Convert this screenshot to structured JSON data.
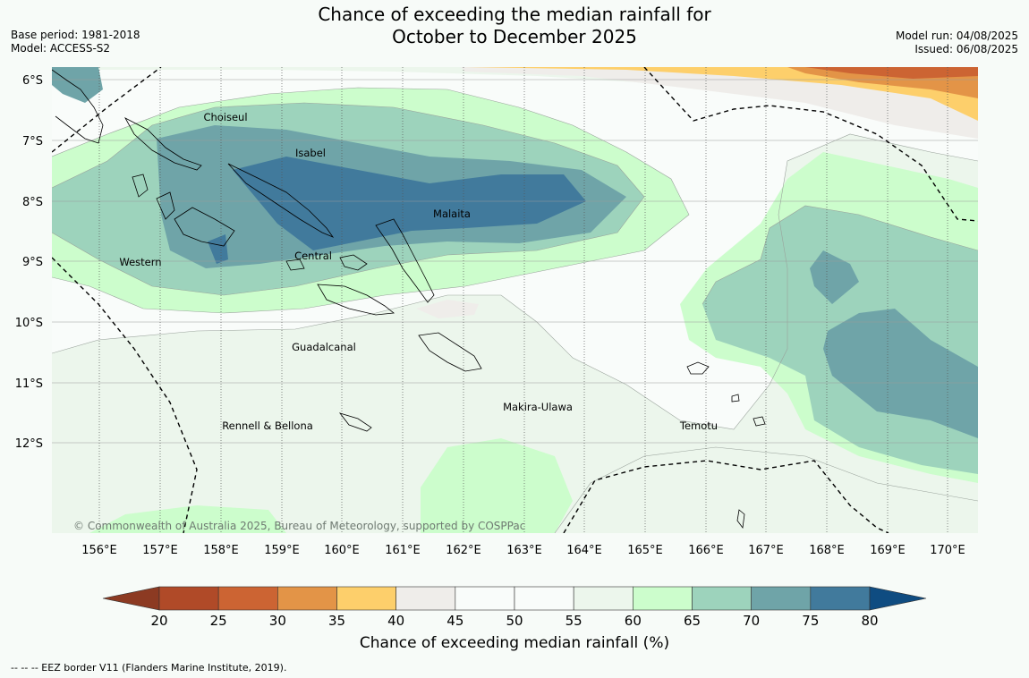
{
  "header": {
    "title_line1": "Chance of exceeding the median rainfall for",
    "title_line2": "October to December 2025",
    "base_period": "Base period: 1981-2018",
    "model": "Model: ACCESS-S2",
    "model_run": "Model run: 04/08/2025",
    "issued": "Issued: 06/08/2025"
  },
  "map": {
    "latitude_labels": [
      "6°S",
      "7°S",
      "8°S",
      "9°S",
      "10°S",
      "11°S",
      "12°S"
    ],
    "longitude_labels": [
      "156°E",
      "157°E",
      "158°E",
      "159°E",
      "160°E",
      "161°E",
      "162°E",
      "163°E",
      "164°E",
      "165°E",
      "166°E",
      "167°E",
      "168°E",
      "169°E",
      "170°E"
    ],
    "place_labels": [
      {
        "name": "Choiseul"
      },
      {
        "name": "Isabel"
      },
      {
        "name": "Malaita"
      },
      {
        "name": "Western"
      },
      {
        "name": "Central"
      },
      {
        "name": "Guadalcanal"
      },
      {
        "name": "Makira-Ulawa"
      },
      {
        "name": "Rennell & Bellona"
      },
      {
        "name": "Temotu"
      }
    ],
    "copyright": "© Commonwealth of Australia 2025, Bureau of Meteorology, supported by COSPPac"
  },
  "colorbar": {
    "label": "Chance of exceeding median rainfall (%)",
    "ticks": [
      "20",
      "25",
      "30",
      "35",
      "40",
      "45",
      "50",
      "55",
      "60",
      "65",
      "70",
      "75",
      "80"
    ],
    "under_color": "#8c3a22",
    "over_color": "#0f4c81",
    "colors": [
      "#b04a28",
      "#cc6433",
      "#e39447",
      "#fdcf6b",
      "#efedea",
      "#f9fcfa",
      "#f9fcfa",
      "#ecf6ec",
      "#ccfdcc",
      "#9dd3bc",
      "#6fa4a8",
      "#417a9c"
    ]
  },
  "footer": {
    "legend_text": "--  --  -- EEZ border V11 (Flanders Marine Institute, 2019)."
  }
}
